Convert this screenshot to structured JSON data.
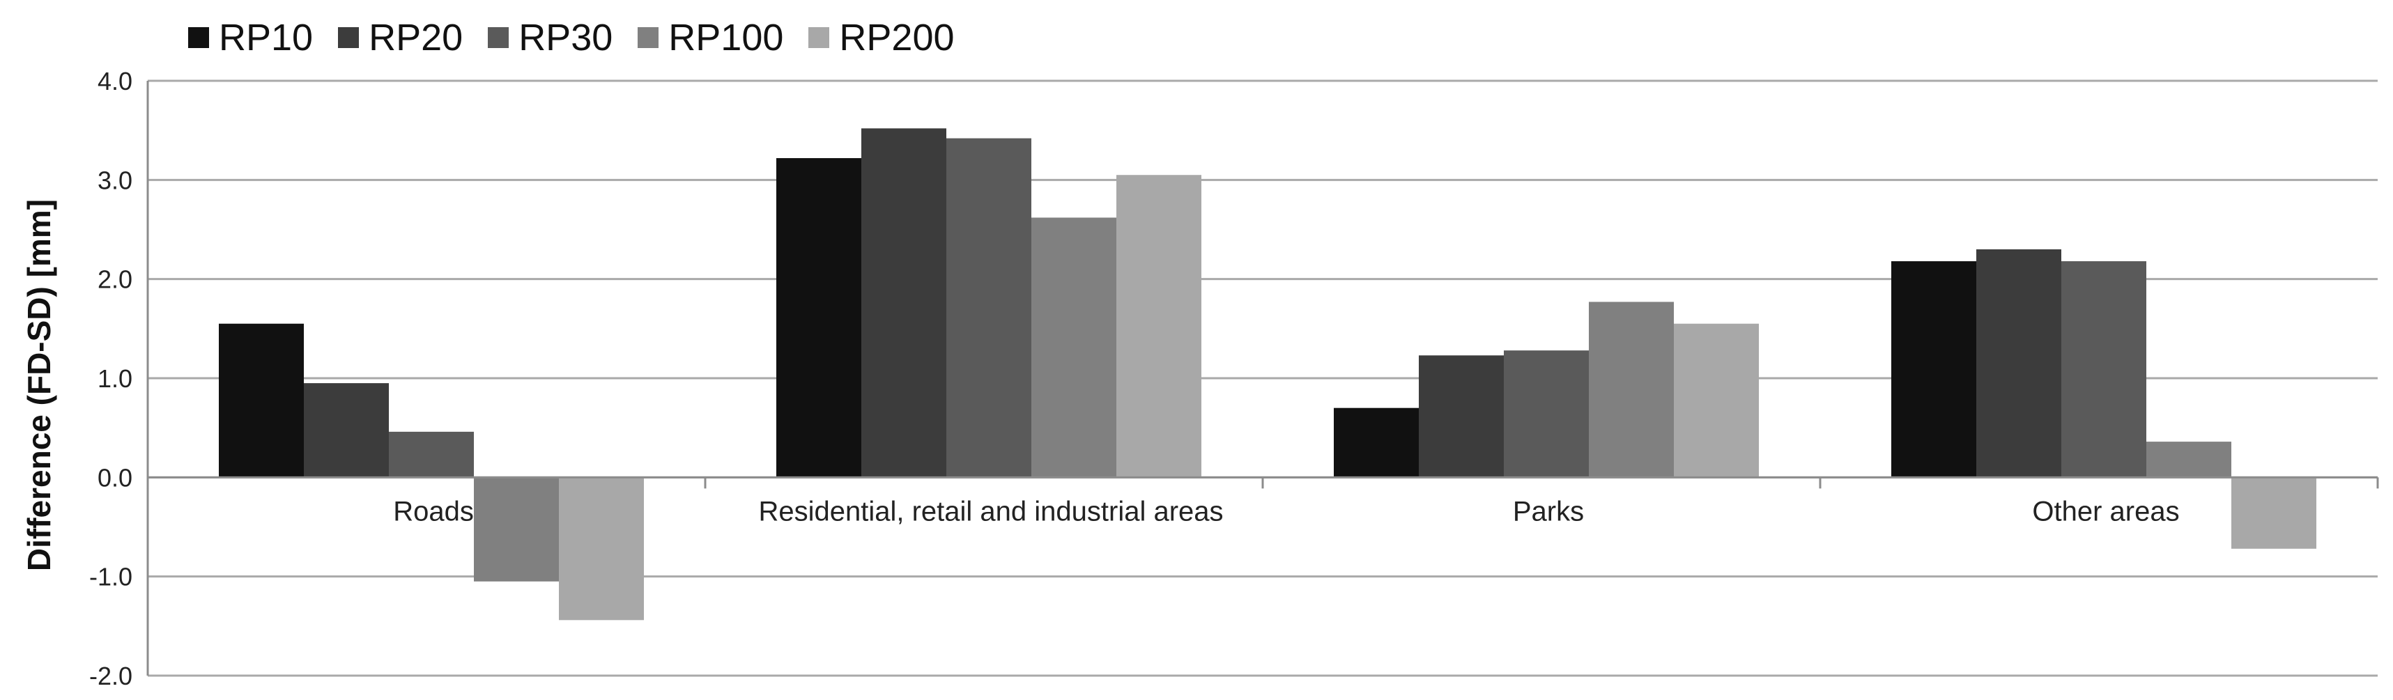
{
  "chart_data": {
    "type": "bar",
    "categories": [
      "Roads",
      "Residential, retail and industrial areas",
      "Parks",
      "Other areas"
    ],
    "series": [
      {
        "name": "RP10",
        "values": [
          1.55,
          3.22,
          0.7,
          2.18
        ],
        "color": "#111111"
      },
      {
        "name": "RP20",
        "values": [
          0.95,
          3.52,
          1.23,
          2.3
        ],
        "color": "#3c3c3c"
      },
      {
        "name": "RP30",
        "values": [
          0.46,
          3.42,
          1.28,
          2.18
        ],
        "color": "#5a5a5a"
      },
      {
        "name": "RP100",
        "values": [
          -1.05,
          2.62,
          1.77,
          0.36
        ],
        "color": "#808080"
      },
      {
        "name": "RP200",
        "values": [
          -1.44,
          3.05,
          1.55,
          -0.72
        ],
        "color": "#a8a8a8"
      }
    ],
    "ylabel": "Difference  (FD-SD) [mm]",
    "ylim": [
      -2.0,
      4.0
    ],
    "yticks": [
      "4.0",
      "3.0",
      "2.0",
      "1.0",
      "0.0",
      "-1.0",
      "-2.0"
    ],
    "grid": true,
    "legend": "top-left"
  }
}
